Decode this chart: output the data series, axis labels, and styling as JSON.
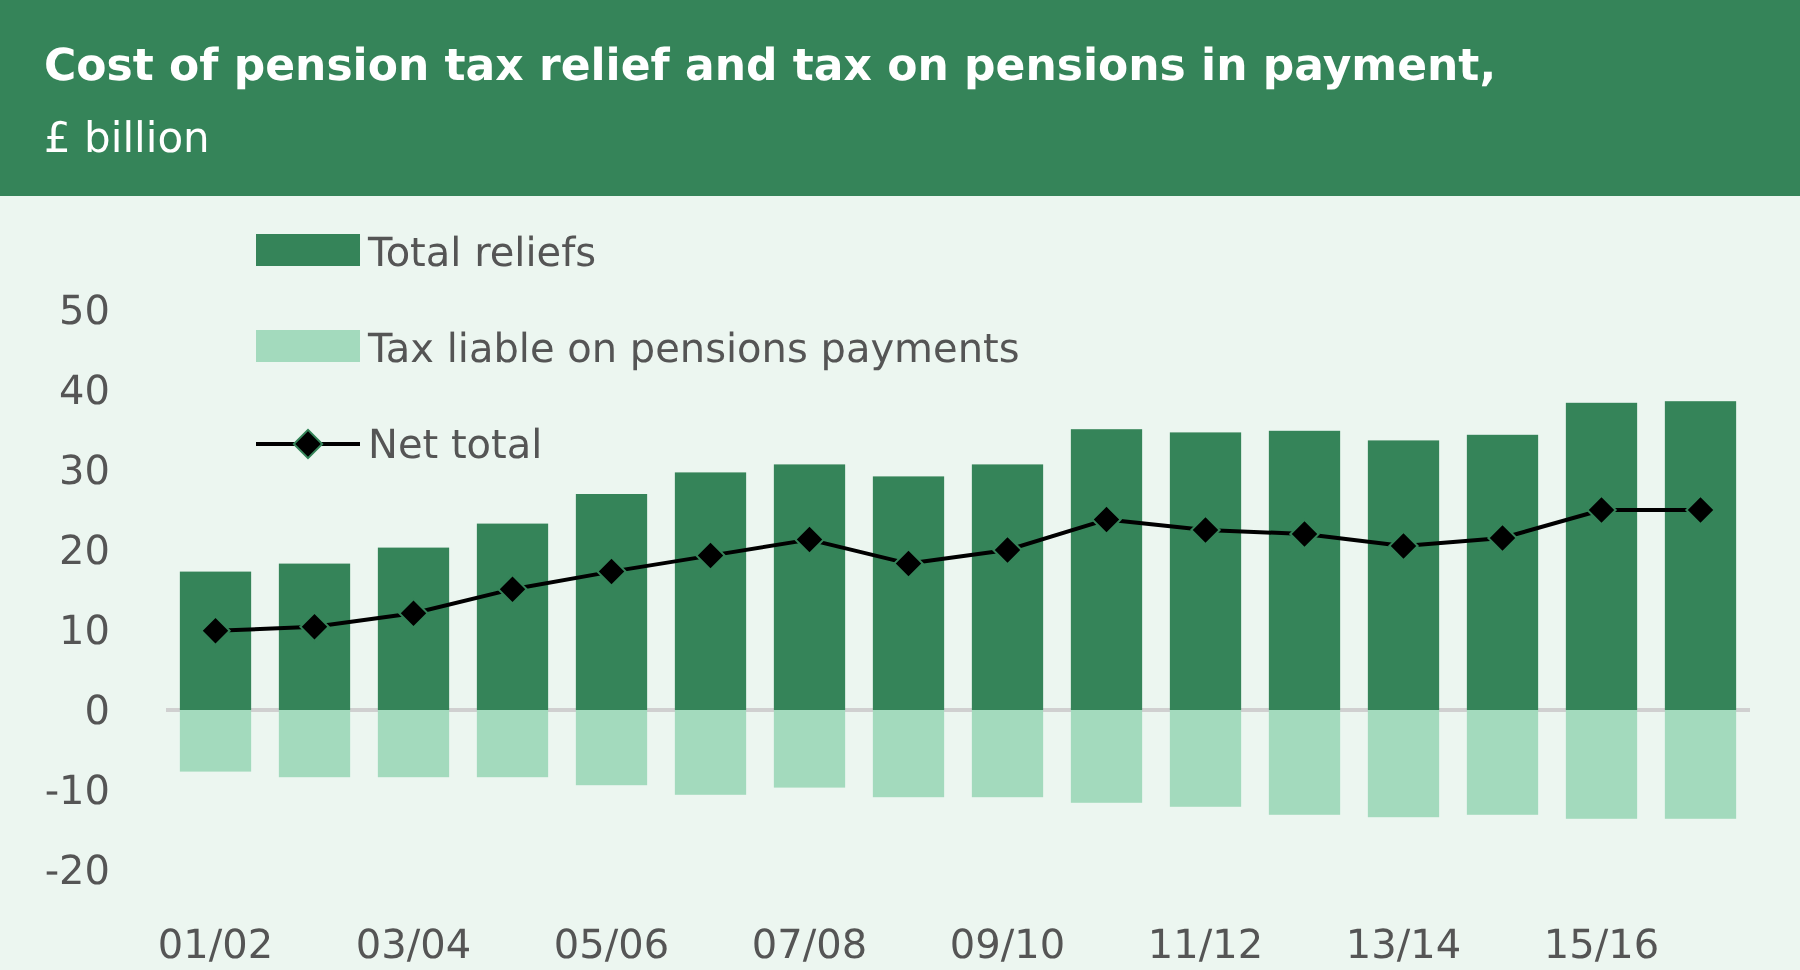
{
  "chart_data": {
    "type": "bar",
    "title": "Cost of pension tax relief and tax on pensions in payment,",
    "subtitle": "£ billion",
    "categories": [
      "01/02",
      null,
      "03/04",
      null,
      "05/06",
      null,
      "07/08",
      null,
      "09/10",
      null,
      "11/12",
      null,
      "13/14",
      null,
      "15/16",
      null
    ],
    "stacked": true,
    "series": [
      {
        "name": "Total reliefs",
        "color": "#358459",
        "values": [
          17.3,
          18.3,
          20.3,
          23.3,
          27.0,
          29.7,
          30.7,
          29.2,
          30.7,
          35.1,
          34.7,
          34.9,
          33.7,
          34.4,
          38.4,
          38.6
        ]
      },
      {
        "name": "Tax liable on pensions payments",
        "color": "#a3dabd",
        "values": [
          -7.7,
          -8.4,
          -8.4,
          -8.4,
          -9.4,
          -10.6,
          -9.7,
          -10.9,
          -10.9,
          -11.6,
          -12.1,
          -13.1,
          -13.4,
          -13.1,
          -13.6,
          -13.6
        ]
      },
      {
        "name": "Net total",
        "type": "line",
        "color": "#000000",
        "marker": "diamond",
        "values": [
          9.9,
          10.4,
          12.1,
          15.1,
          17.3,
          19.3,
          21.3,
          18.3,
          20.0,
          23.8,
          22.5,
          22.0,
          20.5,
          21.5,
          25.0,
          25.0
        ]
      }
    ],
    "ylim": [
      -20,
      50
    ],
    "yticks": [
      -20,
      -10,
      0,
      10,
      20,
      30,
      40,
      50
    ],
    "legend": "top left"
  }
}
